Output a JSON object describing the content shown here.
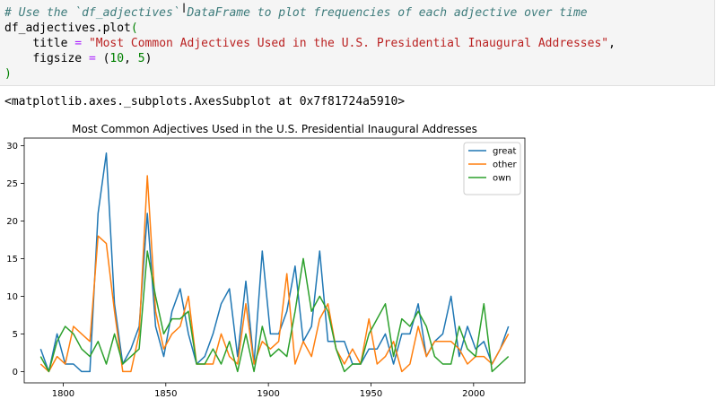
{
  "code": {
    "comment": "# Use the `df_adjectives` DataFrame to plot frequencies of each adjective over time",
    "line2_obj": "df_adjectives.",
    "line2_method": "plot",
    "line2_paren": "(",
    "line3_kw": "title",
    "line3_eq": "=",
    "line3_str": "\"Most Common Adjectives Used in the U.S. Presidential Inaugural Addresses\"",
    "line3_comma": ",",
    "line4_kw": "figsize",
    "line4_eq": "=",
    "line4_open": "(",
    "line4_n1": "10",
    "line4_sep": ", ",
    "line4_n2": "5",
    "line4_close": ")",
    "line5": ")"
  },
  "output": {
    "repr": "<matplotlib.axes._subplots.AxesSubplot at 0x7f81724a5910>"
  },
  "chart_data": {
    "type": "line",
    "title": "Most Common Adjectives Used in the U.S. Presidential Inaugural Addresses",
    "xlabel": "",
    "ylabel": "",
    "xlim": [
      1781,
      2025
    ],
    "ylim": [
      -1.5,
      31
    ],
    "xticks": [
      1800,
      1850,
      1900,
      1950,
      2000
    ],
    "yticks": [
      0,
      5,
      10,
      15,
      20,
      25,
      30
    ],
    "legend_position": "top-right",
    "grid": false,
    "x": [
      1789,
      1793,
      1797,
      1801,
      1805,
      1809,
      1813,
      1817,
      1821,
      1825,
      1829,
      1833,
      1837,
      1841,
      1845,
      1849,
      1853,
      1857,
      1861,
      1865,
      1869,
      1873,
      1877,
      1881,
      1885,
      1889,
      1893,
      1897,
      1901,
      1905,
      1909,
      1913,
      1917,
      1921,
      1925,
      1929,
      1933,
      1937,
      1941,
      1945,
      1949,
      1953,
      1957,
      1961,
      1965,
      1969,
      1973,
      1977,
      1981,
      1985,
      1989,
      1993,
      1997,
      2001,
      2005,
      2009,
      2013,
      2017
    ],
    "series": [
      {
        "name": "great",
        "color": "#1f77b4",
        "values": [
          3,
          0,
          5,
          1,
          1,
          0,
          0,
          21,
          29,
          9,
          1,
          3,
          6,
          21,
          6,
          2,
          8,
          11,
          5,
          1,
          2,
          5,
          9,
          11,
          2,
          12,
          1,
          16,
          5,
          5,
          8,
          14,
          4,
          6,
          16,
          4,
          4,
          4,
          1,
          1,
          3,
          3,
          5,
          1,
          5,
          5,
          9,
          2,
          4,
          5,
          10,
          2,
          6,
          3,
          4,
          1,
          3,
          6
        ]
      },
      {
        "name": "other",
        "color": "#ff7f0e",
        "values": [
          1,
          0,
          2,
          1,
          6,
          5,
          4,
          18,
          17,
          8,
          0,
          0,
          5,
          26,
          8,
          3,
          5,
          6,
          10,
          1,
          1,
          1,
          5,
          2,
          1,
          9,
          1,
          4,
          3,
          4,
          13,
          1,
          4,
          2,
          7,
          9,
          3,
          1,
          3,
          1,
          7,
          1,
          2,
          4,
          0,
          1,
          6,
          2,
          4,
          4,
          4,
          3,
          1,
          2,
          2,
          1,
          3,
          5
        ]
      },
      {
        "name": "own",
        "color": "#2ca02c",
        "values": [
          2,
          0,
          4,
          6,
          5,
          3,
          2,
          4,
          1,
          5,
          1,
          2,
          3,
          16,
          10,
          5,
          7,
          7,
          8,
          1,
          1,
          3,
          1,
          4,
          0,
          5,
          0,
          6,
          2,
          3,
          2,
          8,
          15,
          8,
          10,
          8,
          3,
          0,
          1,
          1,
          5,
          7,
          9,
          2,
          7,
          6,
          8,
          6,
          2,
          1,
          1,
          6,
          3,
          2,
          9,
          0,
          1,
          2
        ]
      }
    ]
  }
}
